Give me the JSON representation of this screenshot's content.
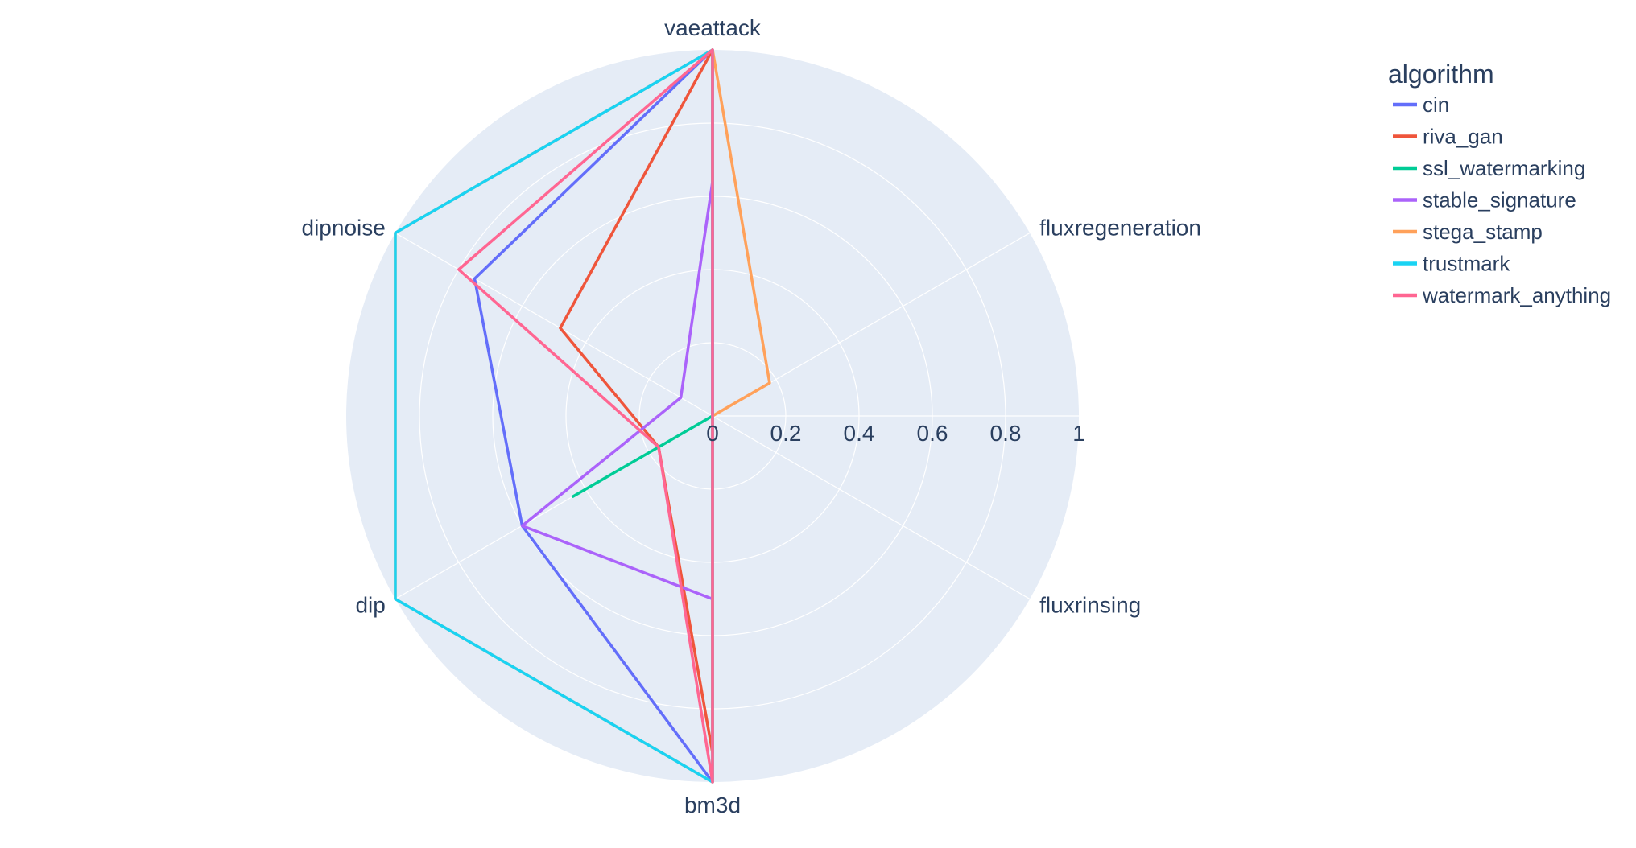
{
  "chart_data": {
    "type": "radar",
    "axes": [
      "vaeattack",
      "fluxregeneration",
      "fluxrinsing",
      "bm3d",
      "dip",
      "dipnoise"
    ],
    "radial_range": [
      0,
      1
    ],
    "radial_ticks": [
      "0",
      "0.2",
      "0.4",
      "0.6",
      "0.8",
      "1"
    ],
    "grid": true,
    "legend": {
      "title": "algorithm",
      "placement": "top-right"
    },
    "series": [
      {
        "name": "cin",
        "color": "#636efa",
        "values": [
          1.0,
          0.0,
          0.0,
          1.0,
          0.6,
          0.75
        ]
      },
      {
        "name": "riva_gan",
        "color": "#ef553b",
        "values": [
          1.0,
          0.0,
          0.0,
          0.92,
          0.17,
          0.48
        ]
      },
      {
        "name": "ssl_watermarking",
        "color": "#00cc96",
        "values": [
          0.0,
          0.0,
          0.0,
          0.0,
          0.44,
          0.0
        ]
      },
      {
        "name": "stable_signature",
        "color": "#ab63fa",
        "values": [
          0.64,
          0.0,
          0.0,
          0.5,
          0.6,
          0.1
        ]
      },
      {
        "name": "stega_stamp",
        "color": "#ffa15a",
        "values": [
          1.0,
          0.18,
          0.0,
          1.0,
          1.0,
          1.0
        ]
      },
      {
        "name": "trustmark",
        "color": "#19d3f3",
        "values": [
          1.0,
          0.0,
          0.0,
          1.0,
          1.0,
          1.0
        ]
      },
      {
        "name": "watermark_anything",
        "color": "#ff6692",
        "values": [
          1.0,
          0.0,
          0.0,
          1.0,
          0.17,
          0.8
        ]
      }
    ]
  }
}
